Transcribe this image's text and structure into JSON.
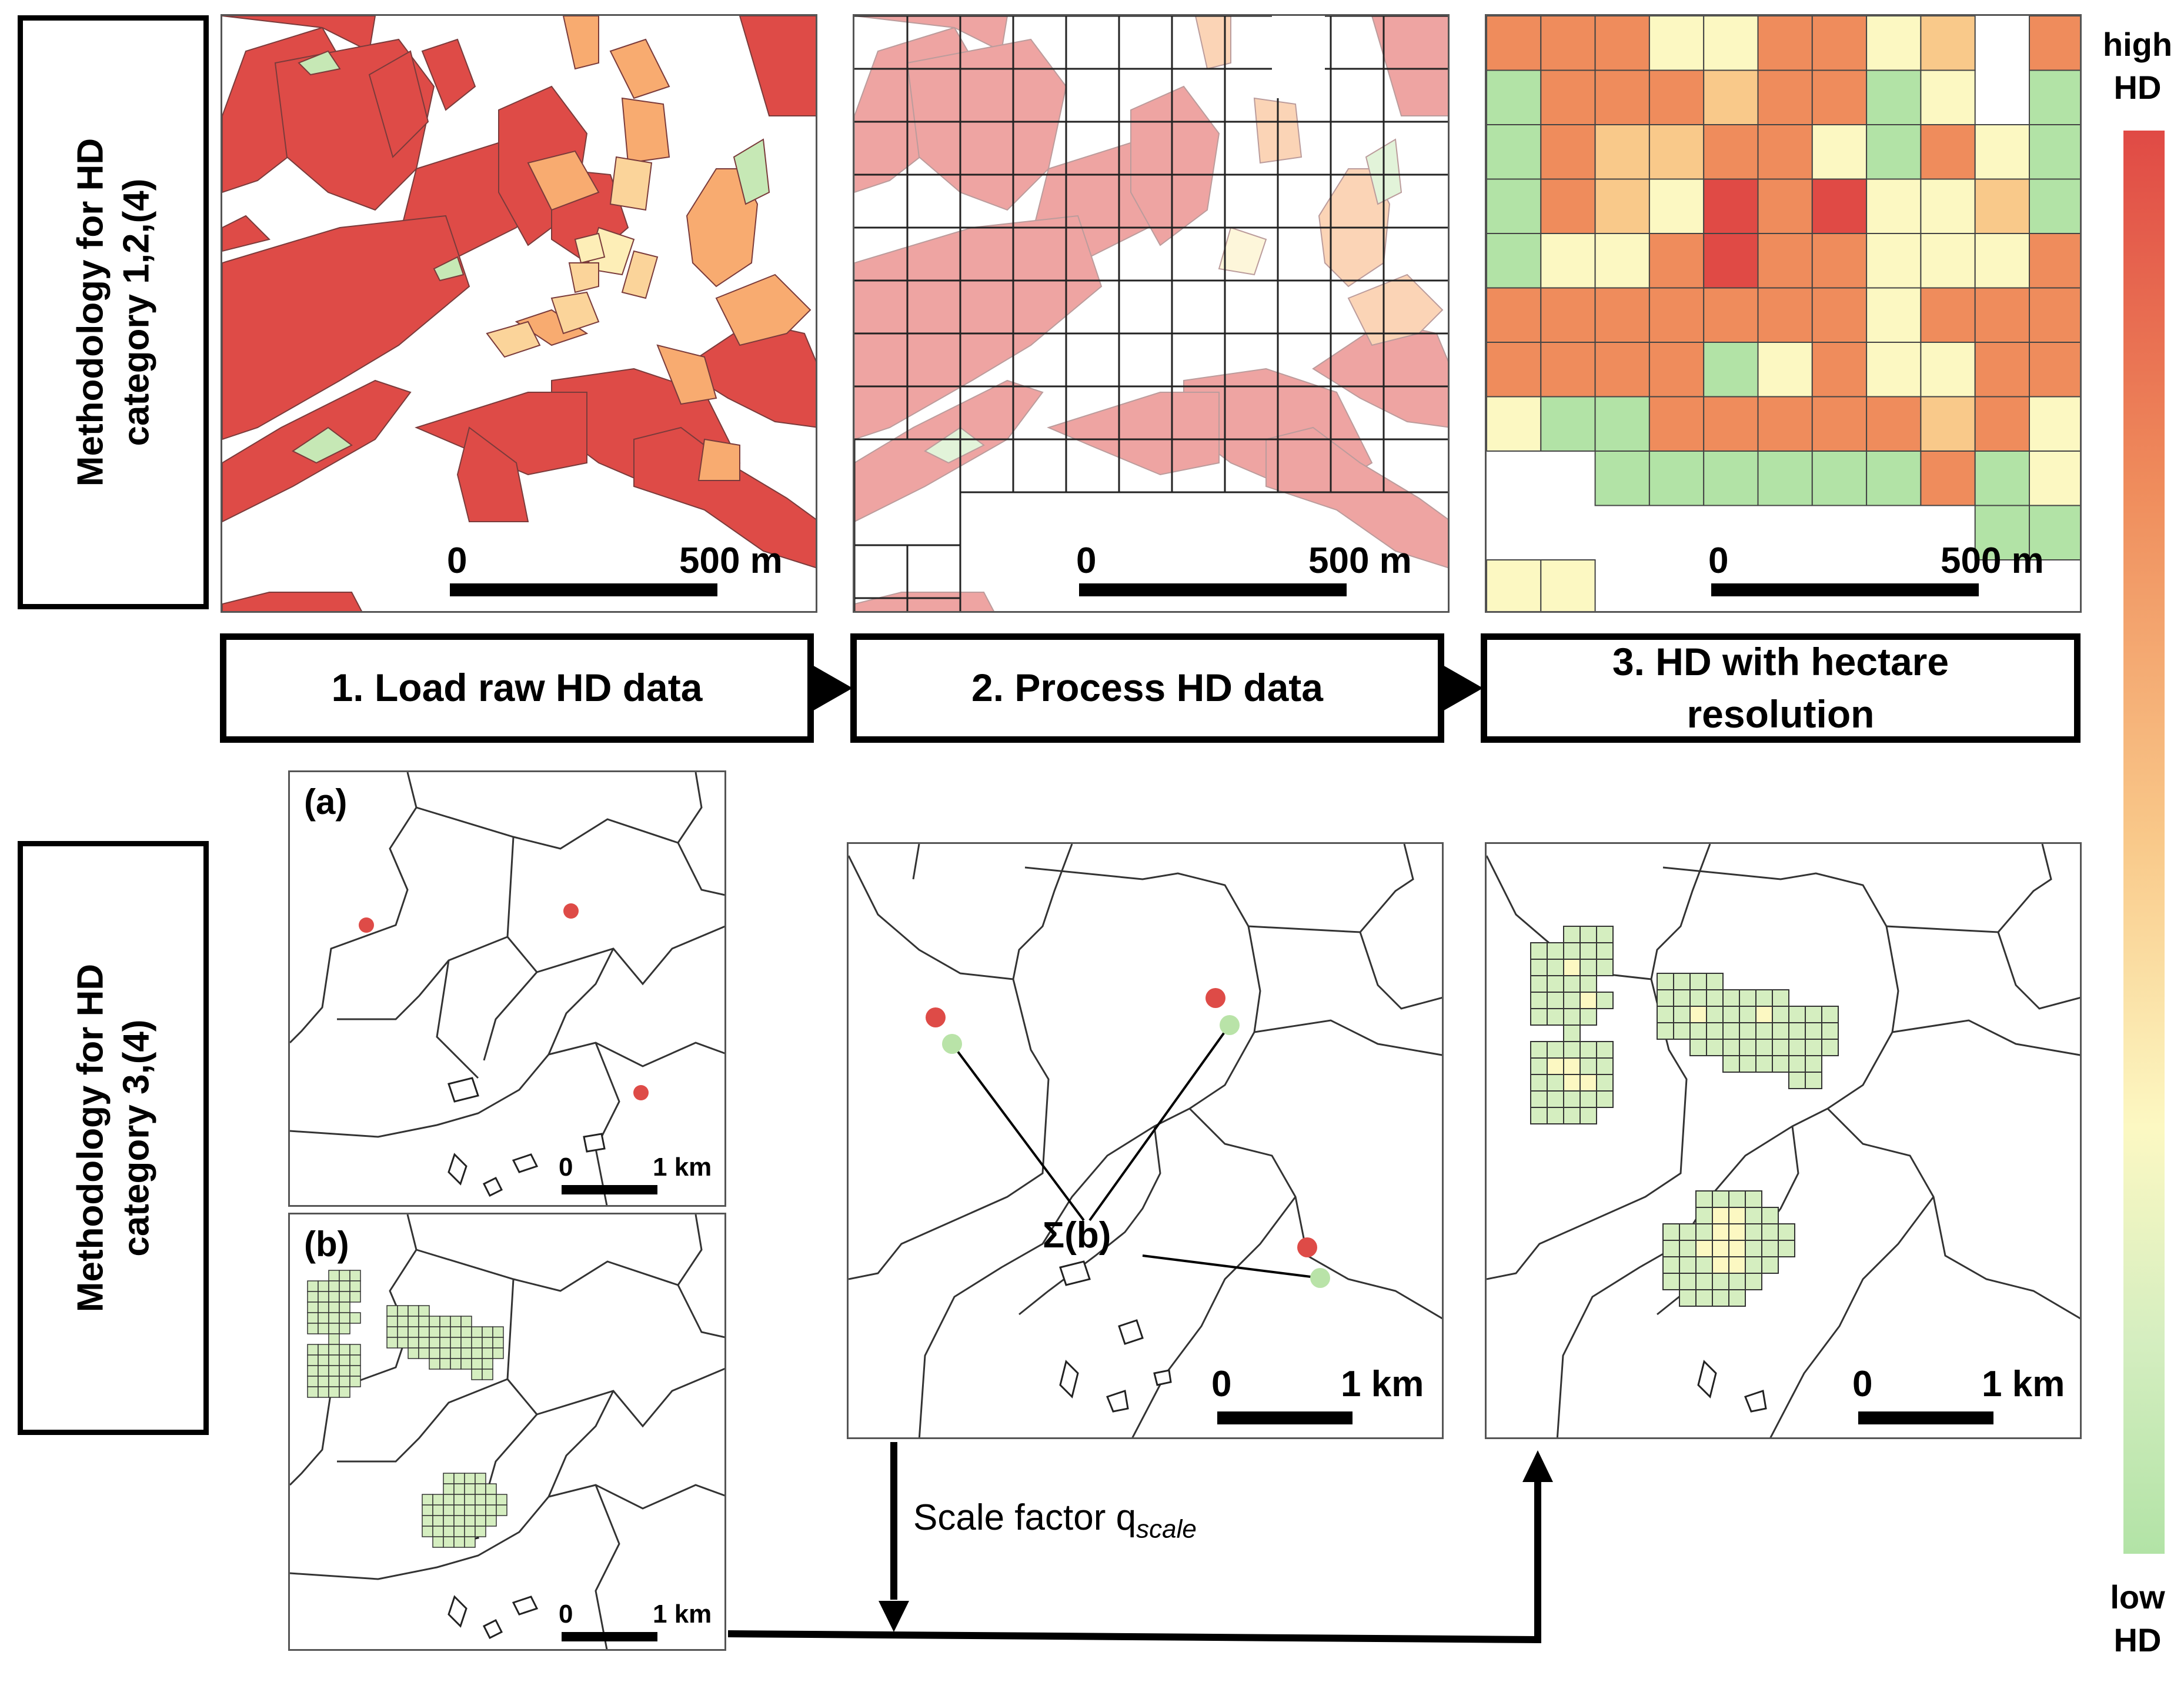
{
  "rows": {
    "top_label": "Methodology for HD category 1,2,(4)",
    "bottom_label": "Methodology for HD category 3,(4)"
  },
  "steps": [
    {
      "label": "1. Load raw HD data"
    },
    {
      "label": "2. Process HD data"
    },
    {
      "label": "3. HD with hectare resolution"
    }
  ],
  "scalebars": {
    "top_start": "0",
    "top_end": "500 m",
    "bottom_start": "0",
    "bottom_end": "1 km"
  },
  "panels": {
    "a_label": "(a)",
    "b_label": "(b)",
    "sum_label": "Σ(b)"
  },
  "flow": {
    "scale_factor_text": "Scale factor q",
    "scale_factor_sub": "scale"
  },
  "legend": {
    "high": "high HD",
    "low": "low HD",
    "colors": [
      "#e04a45",
      "#ef8c5c",
      "#f9c98a",
      "#fcf8c2",
      "#d5eec0",
      "#b2e3a6"
    ]
  }
}
